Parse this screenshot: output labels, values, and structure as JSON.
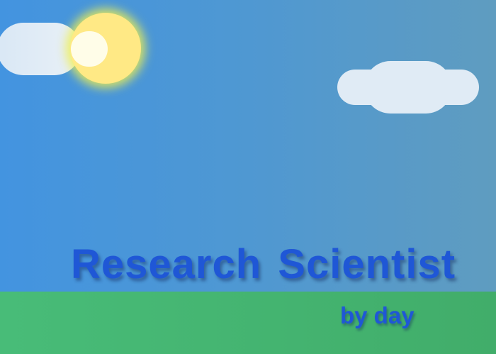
{
  "scene": {
    "headline": "Research  Scientist",
    "subheadline": "by day",
    "colors": {
      "sky_left": "#4394e0",
      "sky_right": "#5f9cc0",
      "sun": "#ffe985",
      "sun_glow": "#eef050",
      "cloud": "#e0ebf5",
      "ground_left": "#48bc78",
      "ground_right": "#41ad6a",
      "text": "#1f57d6"
    }
  }
}
